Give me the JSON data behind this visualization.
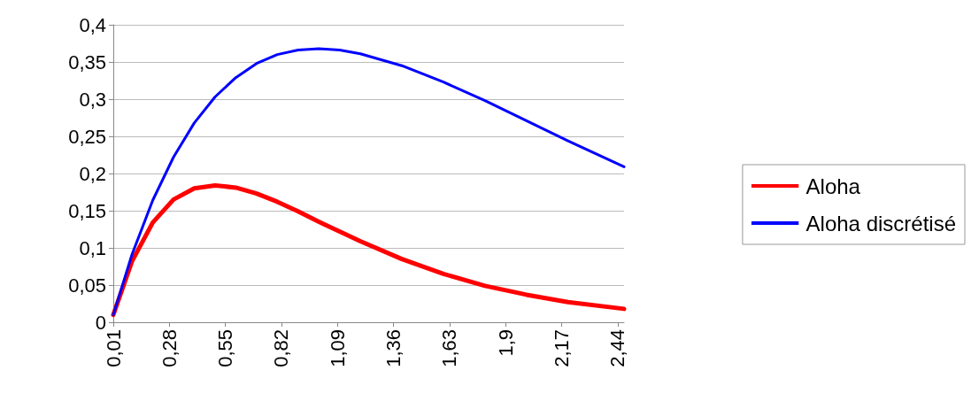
{
  "chart_data": {
    "type": "line",
    "x": [
      0.01,
      0.1,
      0.2,
      0.3,
      0.4,
      0.5,
      0.6,
      0.7,
      0.8,
      0.9,
      1.0,
      1.1,
      1.2,
      1.4,
      1.6,
      1.8,
      2.0,
      2.2,
      2.47
    ],
    "series": [
      {
        "name": "Aloha",
        "color": "#ff0000",
        "values": [
          0.01,
          0.082,
          0.134,
          0.165,
          0.18,
          0.184,
          0.181,
          0.173,
          0.162,
          0.149,
          0.135,
          0.122,
          0.109,
          0.085,
          0.065,
          0.049,
          0.037,
          0.027,
          0.018
        ]
      },
      {
        "name": "Aloha discrétisé",
        "color": "#0000ff",
        "values": [
          0.01,
          0.091,
          0.164,
          0.222,
          0.268,
          0.303,
          0.329,
          0.348,
          0.36,
          0.366,
          0.368,
          0.366,
          0.361,
          0.345,
          0.323,
          0.298,
          0.271,
          0.244,
          0.209
        ]
      }
    ],
    "xlim": [
      0.01,
      2.47
    ],
    "xticks": [
      {
        "value": 0.01,
        "label": "0,01"
      },
      {
        "value": 0.28,
        "label": "0,28"
      },
      {
        "value": 0.55,
        "label": "0,55"
      },
      {
        "value": 0.82,
        "label": "0,82"
      },
      {
        "value": 1.09,
        "label": "1,09"
      },
      {
        "value": 1.36,
        "label": "1,36"
      },
      {
        "value": 1.63,
        "label": "1,63"
      },
      {
        "value": 1.9,
        "label": "1,9"
      },
      {
        "value": 2.17,
        "label": "2,17"
      },
      {
        "value": 2.44,
        "label": "2,44"
      }
    ],
    "ylim": [
      0,
      0.4
    ],
    "yticks": [
      0,
      {
        "value": 0.05,
        "label": "0,05"
      },
      {
        "value": 0.1,
        "label": "0,1"
      },
      {
        "value": 0.15,
        "label": "0,15"
      },
      {
        "value": 0.2,
        "label": "0,2"
      },
      {
        "value": 0.25,
        "label": "0,25"
      },
      {
        "value": 0.3,
        "label": "0,3"
      },
      {
        "value": 0.35,
        "label": "0,35"
      },
      {
        "value": 0.4,
        "label": "0,4"
      }
    ],
    "grid": "y",
    "legend": "right",
    "marker": "none",
    "line_style": "solid"
  }
}
